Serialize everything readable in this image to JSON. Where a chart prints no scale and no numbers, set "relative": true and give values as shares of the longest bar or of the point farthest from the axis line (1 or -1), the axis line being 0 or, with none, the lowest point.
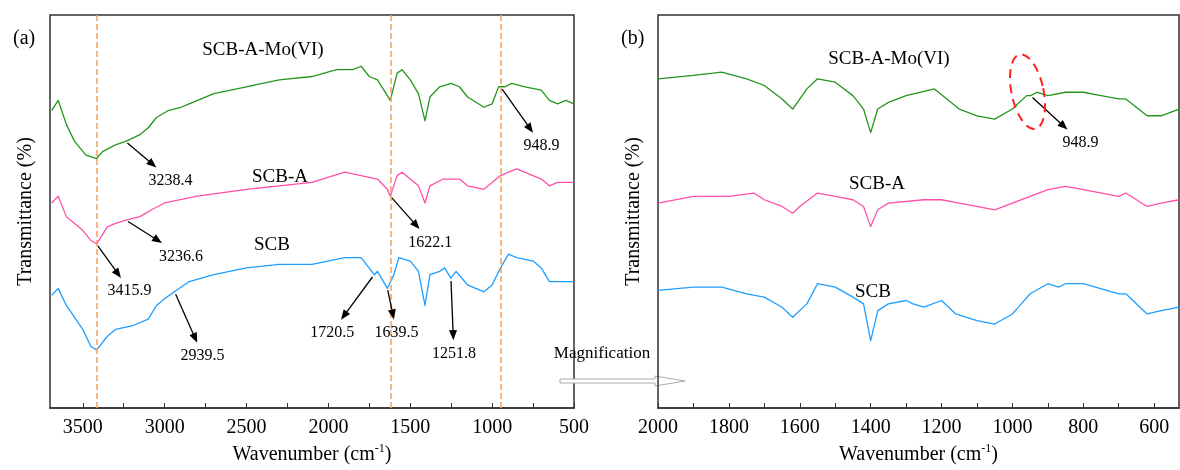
{
  "chart_data": [
    {
      "type": "line",
      "title": "(a)",
      "xlabel": "Wavenumber (cm$^{-1}$)",
      "ylabel": "Transmittance (%)",
      "relative": true,
      "xlim": [
        3700,
        500
      ],
      "xticks": [
        3500,
        {
          "value": 3250,
          "label": null
        },
        3000,
        {
          "value": 2750,
          "label": null
        },
        2500,
        {
          "value": 2250,
          "label": null
        },
        2000,
        {
          "value": 1750,
          "label": null
        },
        1500,
        {
          "value": 1250,
          "label": null
        },
        1000,
        {
          "value": 750,
          "label": null
        },
        500
      ],
      "series": [
        {
          "name": "SCB-A-Mo(VI)",
          "color": "#24961e",
          "x": [
            3690,
            3650,
            3600,
            3550,
            3480,
            3415,
            3380,
            3300,
            3238,
            3150,
            3100,
            3050,
            2980,
            2900,
            2850,
            2700,
            2500,
            2300,
            2100,
            1950,
            1850,
            1800,
            1750,
            1700,
            1622,
            1580,
            1550,
            1500,
            1450,
            1410,
            1380,
            1320,
            1250,
            1200,
            1150,
            1050,
            1000,
            960,
            949,
            920,
            880,
            800,
            700,
            650,
            600,
            550,
            500
          ],
          "values": [
            0.87,
            0.9,
            0.83,
            0.78,
            0.74,
            0.73,
            0.75,
            0.77,
            0.78,
            0.8,
            0.82,
            0.85,
            0.87,
            0.88,
            0.89,
            0.92,
            0.94,
            0.96,
            0.97,
            0.99,
            0.99,
            1.0,
            0.97,
            0.96,
            0.9,
            0.98,
            0.99,
            0.96,
            0.92,
            0.84,
            0.91,
            0.94,
            0.95,
            0.94,
            0.91,
            0.88,
            0.89,
            0.94,
            0.94,
            0.94,
            0.95,
            0.94,
            0.93,
            0.9,
            0.89,
            0.9,
            0.89
          ]
        },
        {
          "name": "SCB-A",
          "color": "#ff4fa8",
          "x": [
            3690,
            3650,
            3600,
            3500,
            3450,
            3415,
            3350,
            3300,
            3236,
            3150,
            3080,
            3000,
            2800,
            2500,
            2300,
            2100,
            1900,
            1800,
            1700,
            1640,
            1622,
            1580,
            1550,
            1500,
            1450,
            1410,
            1380,
            1300,
            1200,
            1150,
            1050,
            1000,
            949,
            900,
            850,
            750,
            700,
            650,
            600,
            500
          ],
          "values": [
            0.6,
            0.62,
            0.56,
            0.52,
            0.49,
            0.48,
            0.53,
            0.54,
            0.55,
            0.56,
            0.58,
            0.6,
            0.62,
            0.64,
            0.65,
            0.66,
            0.69,
            0.68,
            0.67,
            0.64,
            0.62,
            0.68,
            0.69,
            0.67,
            0.65,
            0.6,
            0.65,
            0.67,
            0.67,
            0.65,
            0.64,
            0.66,
            0.68,
            0.69,
            0.7,
            0.68,
            0.67,
            0.65,
            0.66,
            0.66
          ]
        },
        {
          "name": "SCB",
          "color": "#1e9fff",
          "x": [
            3690,
            3650,
            3600,
            3500,
            3450,
            3415,
            3350,
            3300,
            3200,
            3100,
            3050,
            3000,
            2940,
            2850,
            2700,
            2500,
            2300,
            2100,
            1900,
            1800,
            1720,
            1700,
            1640,
            1600,
            1570,
            1500,
            1450,
            1410,
            1380,
            1320,
            1290,
            1252,
            1220,
            1150,
            1050,
            1000,
            949,
            900,
            850,
            750,
            700,
            650,
            600,
            500
          ],
          "values": [
            0.33,
            0.35,
            0.3,
            0.23,
            0.18,
            0.17,
            0.21,
            0.23,
            0.24,
            0.26,
            0.3,
            0.32,
            0.34,
            0.37,
            0.39,
            0.41,
            0.42,
            0.42,
            0.44,
            0.44,
            0.39,
            0.4,
            0.35,
            0.39,
            0.44,
            0.43,
            0.4,
            0.3,
            0.39,
            0.4,
            0.41,
            0.38,
            0.4,
            0.36,
            0.34,
            0.36,
            0.41,
            0.45,
            0.44,
            0.43,
            0.41,
            0.37,
            0.37,
            0.37
          ]
        }
      ],
      "ref_lines": [
        {
          "axis": "x",
          "value": 3415.9,
          "color": "#f5a05a",
          "line_style": "dashed"
        },
        {
          "axis": "x",
          "value": 1622.1,
          "color": "#f5a05a",
          "line_style": "dashed"
        },
        {
          "axis": "x",
          "value": 948.9,
          "color": "#f5a05a",
          "line_style": "dashed"
        }
      ],
      "annotations": [
        {
          "text": "3238.4",
          "x": 3238.4,
          "y": 0.78
        },
        {
          "text": "3236.6",
          "x": 3236.6,
          "y": 0.55
        },
        {
          "text": "3415.9",
          "x": 3415.9,
          "y": 0.48
        },
        {
          "text": "2939.5",
          "x": 2939.5,
          "y": 0.34
        },
        {
          "text": "1622.1",
          "x": 1622.1,
          "y": 0.62
        },
        {
          "text": "1720.5",
          "x": 1720.5,
          "y": 0.39
        },
        {
          "text": "1639.5",
          "x": 1639.5,
          "y": 0.35
        },
        {
          "text": "1251.8",
          "x": 1251.8,
          "y": 0.38
        },
        {
          "text": "948.9",
          "x": 948.9,
          "y": 0.94
        },
        "Magnification"
      ]
    },
    {
      "type": "line",
      "title": "(b)",
      "xlabel": "Wavenumber (cm$^{-1}$)",
      "ylabel": "Transmittance (%)",
      "relative": true,
      "xlim": [
        2000,
        530
      ],
      "xticks": [
        2000,
        {
          "value": 1900,
          "label": null
        },
        1800,
        {
          "value": 1700,
          "label": null
        },
        1600,
        {
          "value": 1500,
          "label": null
        },
        1400,
        {
          "value": 1300,
          "label": null
        },
        1200,
        {
          "value": 1100,
          "label": null
        },
        1000,
        {
          "value": 900,
          "label": null
        },
        800,
        {
          "value": 700,
          "label": null
        },
        600
      ],
      "series": [
        {
          "name": "SCB-A-Mo(VI)",
          "color": "#24961e",
          "x": [
            2000,
            1900,
            1820,
            1750,
            1700,
            1650,
            1620,
            1580,
            1550,
            1500,
            1450,
            1420,
            1400,
            1380,
            1350,
            1300,
            1220,
            1150,
            1100,
            1050,
            1000,
            960,
            949,
            930,
            900,
            850,
            800,
            750,
            700,
            680,
            620,
            580,
            530
          ],
          "values": [
            0.98,
            0.99,
            1.0,
            0.98,
            0.96,
            0.92,
            0.89,
            0.95,
            0.98,
            0.97,
            0.93,
            0.89,
            0.82,
            0.89,
            0.91,
            0.93,
            0.95,
            0.89,
            0.87,
            0.86,
            0.89,
            0.93,
            0.93,
            0.94,
            0.93,
            0.94,
            0.94,
            0.93,
            0.92,
            0.92,
            0.87,
            0.87,
            0.89
          ]
        },
        {
          "name": "SCB-A",
          "color": "#ff4fa8",
          "x": [
            2000,
            1900,
            1800,
            1730,
            1700,
            1650,
            1620,
            1600,
            1550,
            1500,
            1450,
            1420,
            1400,
            1380,
            1350,
            1250,
            1200,
            1150,
            1100,
            1050,
            1000,
            950,
            900,
            850,
            800,
            700,
            680,
            620,
            580,
            530
          ],
          "values": [
            0.61,
            0.63,
            0.63,
            0.64,
            0.62,
            0.6,
            0.58,
            0.6,
            0.64,
            0.63,
            0.62,
            0.6,
            0.54,
            0.59,
            0.61,
            0.62,
            0.62,
            0.61,
            0.6,
            0.59,
            0.61,
            0.63,
            0.65,
            0.66,
            0.65,
            0.63,
            0.64,
            0.6,
            0.61,
            0.62
          ]
        },
        {
          "name": "SCB",
          "color": "#1e9fff",
          "x": [
            2000,
            1900,
            1820,
            1750,
            1700,
            1650,
            1620,
            1580,
            1550,
            1500,
            1450,
            1420,
            1400,
            1380,
            1350,
            1300,
            1280,
            1250,
            1200,
            1160,
            1100,
            1050,
            1000,
            950,
            900,
            870,
            850,
            800,
            700,
            680,
            620,
            580,
            530
          ],
          "values": [
            0.35,
            0.36,
            0.36,
            0.34,
            0.33,
            0.3,
            0.27,
            0.31,
            0.37,
            0.36,
            0.33,
            0.31,
            0.2,
            0.29,
            0.31,
            0.32,
            0.31,
            0.3,
            0.32,
            0.28,
            0.26,
            0.25,
            0.28,
            0.34,
            0.37,
            0.36,
            0.37,
            0.37,
            0.34,
            0.34,
            0.28,
            0.29,
            0.3
          ]
        }
      ],
      "annotations": [
        {
          "text": "948.9",
          "x": 948.9,
          "y": 0.93
        }
      ]
    }
  ]
}
